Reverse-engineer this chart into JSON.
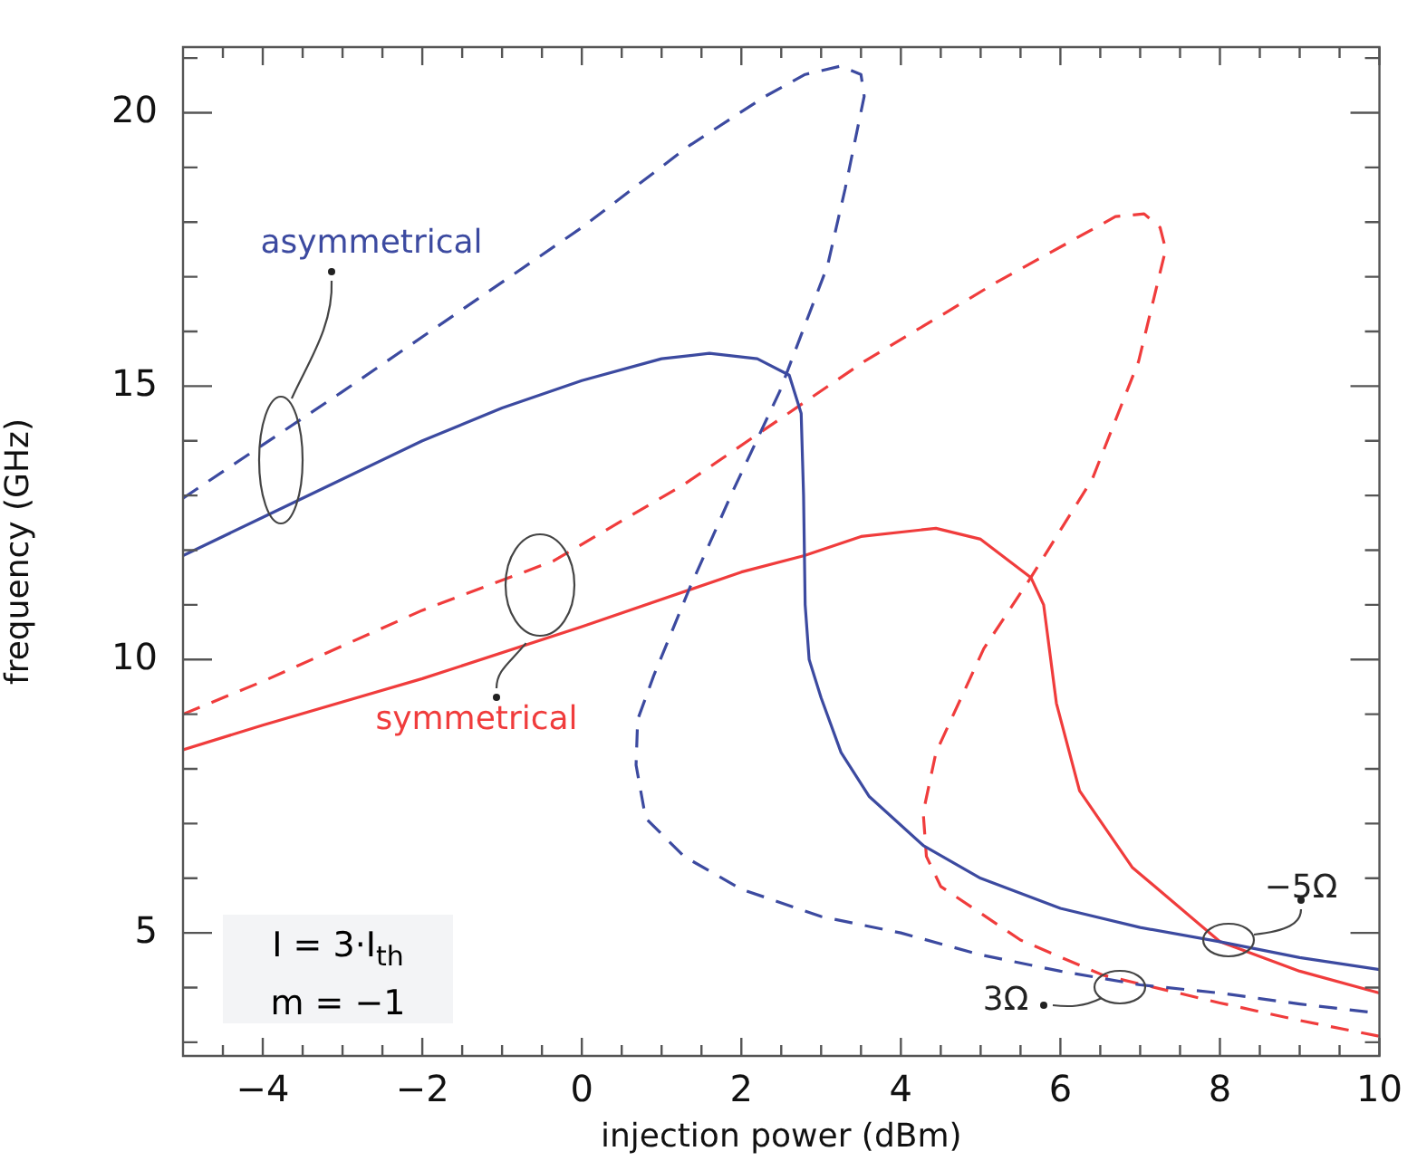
{
  "chart_data": {
    "type": "line",
    "xlabel": "injection power (dBm)",
    "ylabel": "frequency (GHz)",
    "xlim": [
      -5,
      10
    ],
    "ylim": [
      2.75,
      21.2
    ],
    "xticks": [
      {
        "value": -4.5,
        "label": null
      },
      -4,
      {
        "value": -3.5,
        "label": null
      },
      {
        "value": -3,
        "label": null
      },
      {
        "value": -2.5,
        "label": null
      },
      -2,
      {
        "value": -1.5,
        "label": null
      },
      {
        "value": -1,
        "label": null
      },
      {
        "value": -0.5,
        "label": null
      },
      0,
      {
        "value": 0.5,
        "label": null
      },
      {
        "value": 1,
        "label": null
      },
      {
        "value": 1.5,
        "label": null
      },
      2,
      {
        "value": 2.5,
        "label": null
      },
      {
        "value": 3,
        "label": null
      },
      {
        "value": 3.5,
        "label": null
      },
      4,
      {
        "value": 4.5,
        "label": null
      },
      {
        "value": 5,
        "label": null
      },
      {
        "value": 5.5,
        "label": null
      },
      6,
      {
        "value": 6.5,
        "label": null
      },
      {
        "value": 7,
        "label": null
      },
      {
        "value": 7.5,
        "label": null
      },
      8,
      {
        "value": 8.5,
        "label": null
      },
      {
        "value": 9,
        "label": null
      },
      {
        "value": 9.5,
        "label": null
      },
      10
    ],
    "yticks": [
      {
        "value": 3,
        "label": null
      },
      {
        "value": 4,
        "label": null
      },
      5,
      {
        "value": 6,
        "label": null
      },
      {
        "value": 7,
        "label": null
      },
      {
        "value": 8,
        "label": null
      },
      {
        "value": 9,
        "label": null
      },
      10,
      {
        "value": 11,
        "label": null
      },
      {
        "value": 12,
        "label": null
      },
      {
        "value": 13,
        "label": null
      },
      {
        "value": 14,
        "label": null
      },
      15,
      {
        "value": 16,
        "label": null
      },
      {
        "value": 17,
        "label": null
      },
      {
        "value": 18,
        "label": null
      },
      {
        "value": 19,
        "label": null
      },
      20,
      {
        "value": 21,
        "label": null
      }
    ],
    "series": [
      {
        "color": "#3c4aa0",
        "line_style": "solid",
        "x": [
          -5,
          -4,
          -3,
          -2,
          -1,
          0,
          1,
          1.6,
          2.2,
          2.6,
          2.75,
          2.78,
          2.8,
          2.85,
          3.0,
          3.25,
          3.6,
          4.28,
          5,
          6,
          7,
          8,
          9,
          10
        ],
        "values": [
          11.9,
          12.6,
          13.3,
          14.0,
          14.6,
          15.1,
          15.5,
          15.6,
          15.5,
          15.2,
          14.5,
          13,
          11,
          10,
          9.3,
          8.3,
          7.5,
          6.6,
          6.0,
          5.45,
          5.1,
          4.84,
          4.55,
          4.33
        ]
      },
      {
        "color": "#3c4aa0",
        "line_style": "dashed",
        "x": [
          -5,
          -3,
          -1,
          0,
          1.35,
          2.3,
          2.8,
          3.24,
          3.5,
          3.54,
          3.3,
          3.08,
          2.48,
          1.9,
          1.35,
          0.9,
          0.7,
          0.68,
          0.8,
          1.28,
          2,
          3,
          4,
          5,
          6,
          7,
          8,
          9,
          10
        ],
        "values": [
          12.95,
          14.9,
          16.9,
          17.9,
          19.4,
          20.3,
          20.7,
          20.85,
          20.7,
          20.3,
          18.6,
          17.2,
          14.9,
          13.1,
          11.3,
          9.7,
          8.9,
          8.07,
          7.1,
          6.4,
          5.8,
          5.3,
          5.0,
          4.6,
          4.3,
          4.05,
          3.9,
          3.7,
          3.53
        ]
      },
      {
        "color": "#f03c3c",
        "line_style": "solid",
        "x": [
          -5,
          -4,
          -2,
          0,
          2,
          2.79,
          3.5,
          4.44,
          5.0,
          5.63,
          5.79,
          5.95,
          6.24,
          6.9,
          8,
          9,
          10
        ],
        "values": [
          8.35,
          8.8,
          9.65,
          10.6,
          11.6,
          11.9,
          12.25,
          12.4,
          12.2,
          11.5,
          11.0,
          9.2,
          7.6,
          6.2,
          4.84,
          4.3,
          3.9
        ]
      },
      {
        "color": "#f03c3c",
        "line_style": "dashed",
        "x": [
          -5,
          -4,
          -2,
          -0.36,
          1.28,
          3.54,
          5.2,
          6.69,
          7.05,
          7.25,
          7.32,
          6.98,
          6.4,
          5.63,
          5.04,
          4.44,
          4.28,
          4.32,
          4.5,
          5.5,
          6.53,
          8,
          9,
          10
        ],
        "values": [
          9.0,
          9.6,
          10.9,
          11.8,
          13.2,
          15.45,
          16.9,
          18.1,
          18.15,
          17.9,
          17.5,
          15.45,
          13.3,
          11.5,
          10.2,
          8.3,
          7.2,
          6.4,
          5.85,
          4.87,
          4.23,
          3.72,
          3.4,
          3.11
        ]
      }
    ],
    "annotations": [
      "asymmetrical",
      {
        "text": "symmetrical",
        "x": -0.7,
        "y": 10.3
      },
      "−5Ω",
      "3Ω",
      "I = 3·I$_{th}$",
      "m = −1"
    ]
  }
}
